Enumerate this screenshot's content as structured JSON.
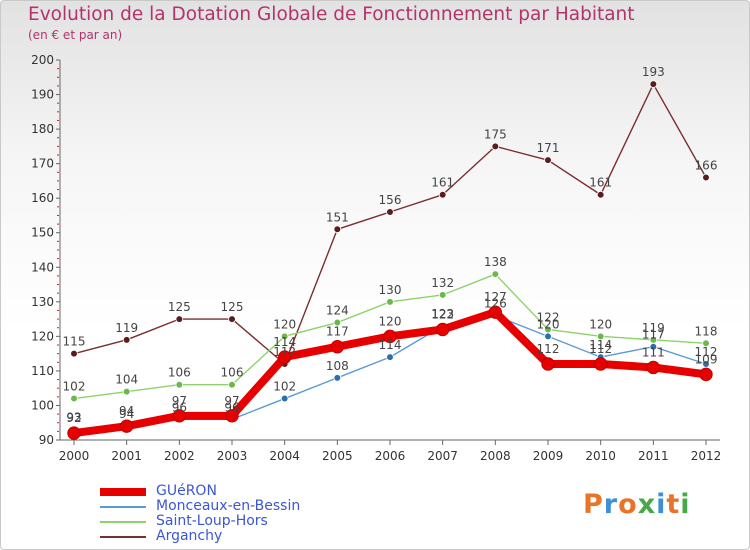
{
  "header": {
    "title": "Evolution de la Dotation Globale de Fonctionnement par Habitant",
    "subtitle": "(en € et par an)"
  },
  "brand": {
    "text": "Proxiti",
    "letter_colors": [
      "#e8742a",
      "#3d8fd6",
      "#e8742a",
      "#4aa64a",
      "#3d8fd6",
      "#e8742a",
      "#4aa64a"
    ]
  },
  "chart_data": {
    "type": "line",
    "title": "Evolution de la Dotation Globale de Fonctionnement par Habitant",
    "subtitle": "(en € et par an)",
    "xlabel": "",
    "ylabel": "",
    "ylim": [
      90,
      200
    ],
    "yticks": [
      90,
      100,
      110,
      120,
      130,
      140,
      150,
      160,
      170,
      180,
      190,
      200
    ],
    "grid": false,
    "x": [
      "2000",
      "2001",
      "2002",
      "2003",
      "2004",
      "2005",
      "2006",
      "2007",
      "2008",
      "2009",
      "2010",
      "2011",
      "2012"
    ],
    "series": [
      {
        "name": "Arganchy",
        "color": "#7a2e2e",
        "values": [
          115,
          119,
          125,
          125,
          112,
          151,
          156,
          161,
          175,
          171,
          161,
          193,
          166
        ]
      },
      {
        "name": "Saint-Loup-Hors",
        "color": "#8cd36a",
        "values": [
          102,
          104,
          106,
          106,
          120,
          124,
          130,
          132,
          138,
          122,
          120,
          119,
          118
        ]
      },
      {
        "name": "Monceaux-en-Bessin",
        "color": "#5b9bd5",
        "values": [
          93,
          94,
          96,
          96,
          102,
          108,
          114,
          123,
          126,
          120,
          114,
          117,
          112
        ]
      },
      {
        "name": "GUéRON",
        "color": "#e60000",
        "values": [
          92,
          94,
          97,
          97,
          114,
          117,
          120,
          122,
          127,
          112,
          112,
          111,
          109
        ]
      }
    ],
    "legend": {
      "position": "bottom-left",
      "order": [
        "GUéRON",
        "Monceaux-en-Bessin",
        "Saint-Loup-Hors",
        "Arganchy"
      ]
    }
  }
}
